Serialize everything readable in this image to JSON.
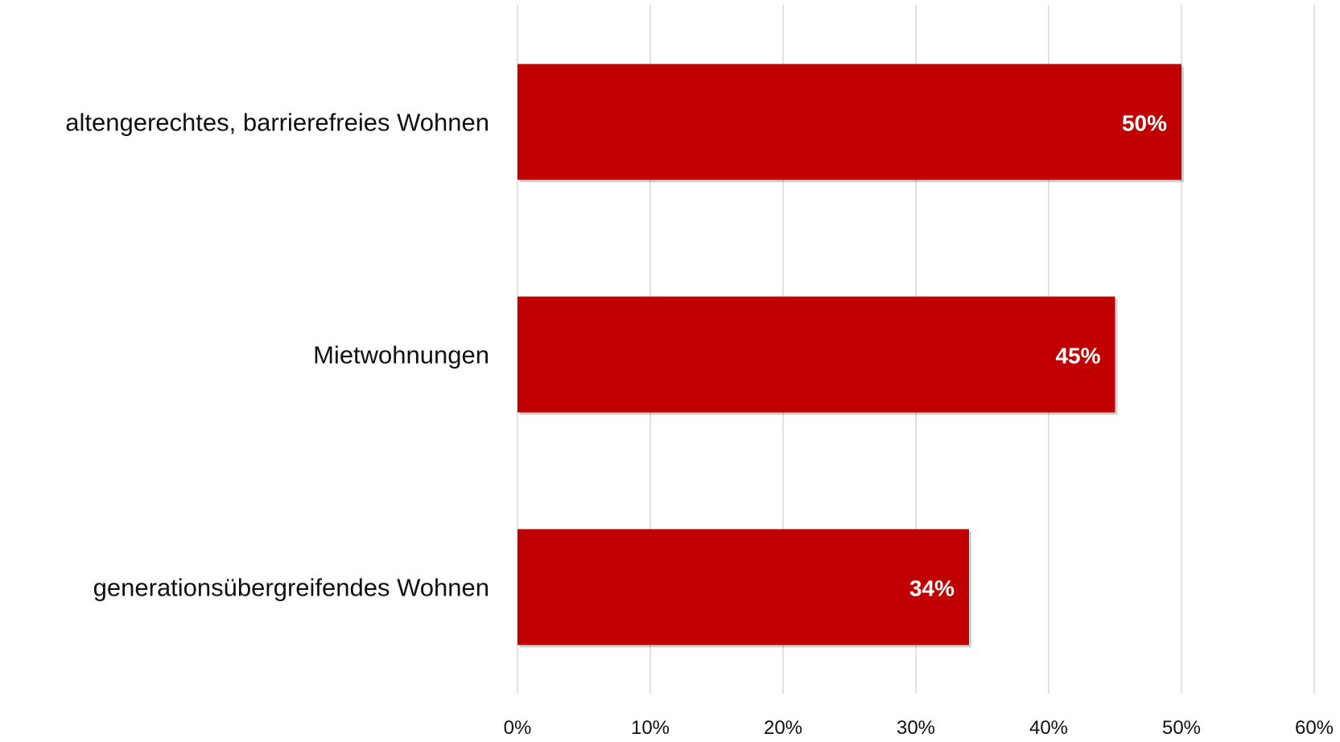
{
  "chart_data": {
    "type": "bar",
    "orientation": "horizontal",
    "categories": [
      "altengerechtes, barrierefreies Wohnen",
      "Mietwohnungen",
      "generationsübergreifendes Wohnen"
    ],
    "values": [
      50,
      45,
      34
    ],
    "data_labels": [
      "50%",
      "45%",
      "34%"
    ],
    "x_ticks": [
      "0%",
      "10%",
      "20%",
      "30%",
      "40%",
      "50%",
      "60%"
    ],
    "xlim": [
      0,
      60
    ],
    "grid": "vertical",
    "legend": "none",
    "bar_color": "#c00000",
    "grid_color": "#d9d9d9"
  }
}
